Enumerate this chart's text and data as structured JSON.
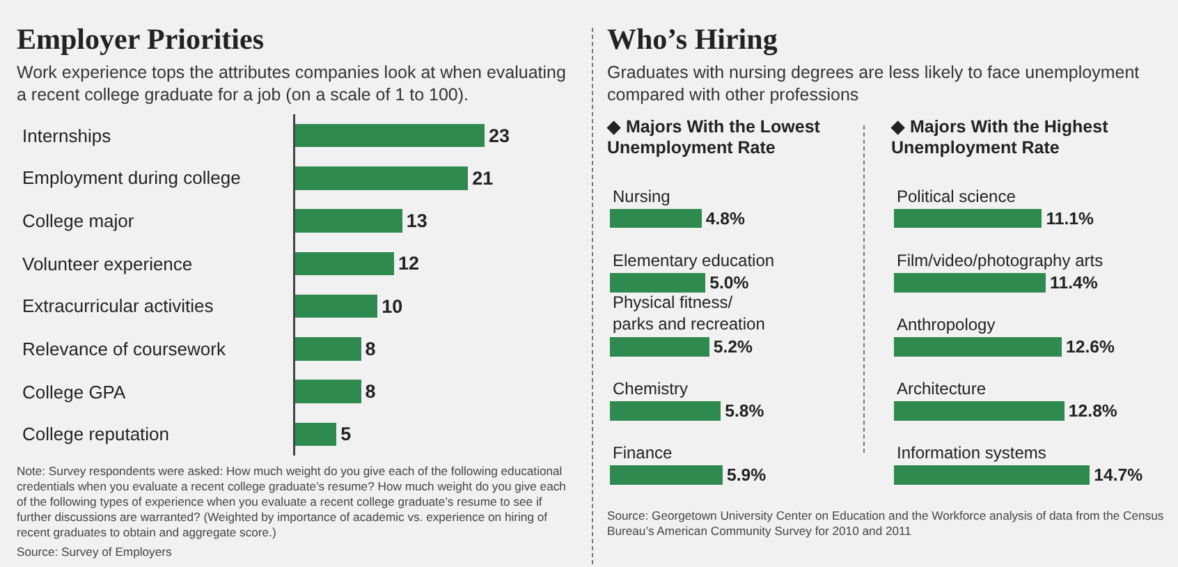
{
  "chart_data": [
    {
      "type": "bar",
      "orientation": "horizontal",
      "title": "Employer Priorities",
      "subtitle": "Work experience tops the attributes companies look at when evaluating a recent college graduate for a job (on a scale of 1 to 100).",
      "categories": [
        "Internships",
        "Employment during college",
        "College major",
        "Volunteer experience",
        "Extracurricular activities",
        "Relevance of coursework",
        "College GPA",
        "College reputation"
      ],
      "values": [
        23,
        21,
        13,
        12,
        10,
        8,
        8,
        5
      ],
      "color": "#2e8a4e",
      "data_labels": true,
      "annotations": [
        "Note:  Survey respondents were asked: How much weight do you give each of the following educational credentials when you evaluate a recent college graduate’s resume? How much weight do you give each of the following types of experience when you evaluate a recent college graduate’s resume to see if further discussions are warranted? (Weighted by importance of academic vs. experience on hiring of recent graduates to obtain and aggregate score.)",
        "Source: Survey of Employers"
      ]
    },
    {
      "type": "other",
      "title": "Who’s Hiring",
      "subtitle": "Graduates with nursing degrees are less likely to face unemployment compared with other professions",
      "annotations": [
        "Source: Georgetown University Center on Education and the Workforce analysis of data from the Census Bureau’s American Community Survey for 2010 and 2011"
      ]
    },
    {
      "type": "bar",
      "orientation": "horizontal",
      "title": "◆ Majors With the Lowest Unemployment Rate",
      "categories": [
        "Nursing",
        "Elementary education",
        "Physical fitness/ parks and recreation",
        "Chemistry",
        "Finance"
      ],
      "values": [
        4.8,
        5.0,
        5.2,
        5.8,
        5.9
      ],
      "value_labels": [
        "4.8%",
        "5.0%",
        "5.2%",
        "5.8%",
        "5.9%"
      ],
      "color": "#2e8a4e"
    },
    {
      "type": "bar",
      "orientation": "horizontal",
      "title": "◆ Majors With the Highest Unemployment Rate",
      "categories": [
        "Political science",
        "Film/video/photography arts",
        "Anthropology",
        "Architecture",
        "Information systems"
      ],
      "values": [
        11.1,
        11.4,
        12.6,
        12.8,
        14.7
      ],
      "value_labels": [
        "11.1%",
        "11.4%",
        "12.6%",
        "12.8%",
        "14.7%"
      ],
      "color": "#2e8a4e"
    }
  ]
}
